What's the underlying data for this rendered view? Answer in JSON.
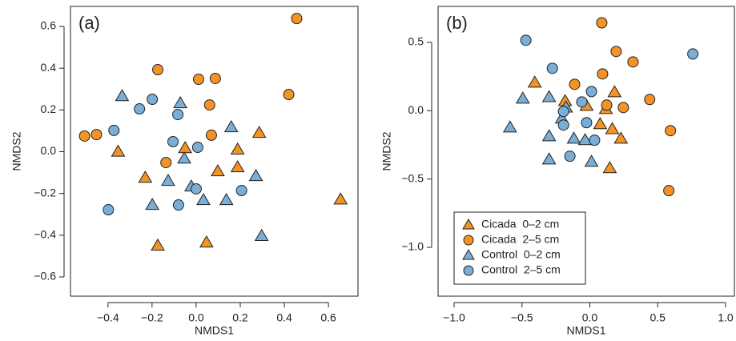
{
  "chart_data": [
    {
      "type": "scatter",
      "panel_label": "(a)",
      "xlabel": "NMDS1",
      "ylabel": "NMDS2",
      "xlim": [
        -0.57,
        0.734
      ],
      "ylim": [
        -0.692,
        0.696
      ],
      "xticks": [
        {
          "value": -0.4,
          "label": "−0.4"
        },
        {
          "value": -0.2,
          "label": "−0.2"
        },
        {
          "value": 0,
          "label": "0.0"
        },
        0.2,
        0.4,
        0.6
      ],
      "yticks": [
        {
          "value": -0.6,
          "label": "−0.6"
        },
        {
          "value": -0.4,
          "label": "−0.4"
        },
        {
          "value": -0.2,
          "label": "−0.2"
        },
        {
          "value": 0,
          "label": "0.0"
        },
        0.2,
        0.4,
        0.6
      ],
      "series": [
        {
          "marker": "triangle",
          "color": "#f39325",
          "x": [
            -0.354,
            -0.231,
            -0.174,
            -0.05,
            0.047,
            0.098,
            0.188,
            0.188,
            0.286,
            0.655
          ],
          "y": [
            0.0,
            -0.125,
            -0.45,
            0.017,
            -0.435,
            -0.094,
            0.01,
            -0.075,
            0.09,
            -0.229
          ]
        },
        {
          "marker": "circle",
          "color": "#f39325",
          "x": [
            -0.506,
            -0.452,
            -0.174,
            -0.137,
            0.011,
            0.087,
            0.061,
            0.069,
            0.42,
            0.456
          ],
          "y": [
            0.075,
            0.082,
            0.393,
            -0.052,
            0.347,
            0.351,
            0.224,
            0.079,
            0.274,
            0.638
          ]
        },
        {
          "marker": "triangle",
          "color": "#7aaed6",
          "x": [
            -0.336,
            -0.072,
            -0.199,
            -0.127,
            -0.054,
            -0.022,
            0.033,
            0.137,
            0.159,
            0.271,
            0.297
          ],
          "y": [
            0.266,
            0.232,
            -0.255,
            -0.14,
            -0.033,
            -0.167,
            -0.232,
            -0.232,
            0.117,
            -0.117,
            -0.404
          ]
        },
        {
          "marker": "circle",
          "color": "#7aaed6",
          "x": [
            -0.373,
            -0.257,
            -0.199,
            -0.083,
            -0.105,
            0.007,
            0.0,
            -0.08,
            0.206,
            -0.398
          ],
          "y": [
            0.102,
            0.205,
            0.251,
            0.178,
            0.048,
            0.021,
            -0.178,
            -0.255,
            -0.186,
            -0.278
          ]
        }
      ]
    },
    {
      "type": "scatter",
      "panel_label": "(b)",
      "xlabel": "NMDS1",
      "ylabel": "NMDS2",
      "xlim": [
        -1.118,
        1.065
      ],
      "ylim": [
        -1.357,
        0.763
      ],
      "xticks": [
        {
          "value": -1,
          "label": "−1.0"
        },
        {
          "value": -0.5,
          "label": "−0.5"
        },
        {
          "value": 0,
          "label": "0.0"
        },
        0.5,
        {
          "value": 1,
          "label": "1.0"
        }
      ],
      "yticks": [
        {
          "value": -1,
          "label": "−1.0"
        },
        {
          "value": -0.5,
          "label": "−0.5"
        },
        {
          "value": 0,
          "label": "0.0"
        },
        0.5
      ],
      "legend": "bottom-left",
      "series": [
        {
          "name": "Cicada  0–2 cm",
          "marker": "triangle",
          "color": "#f39325",
          "x": [
            -0.406,
            -0.182,
            -0.024,
            0.076,
            0.118,
            0.182,
            0.165,
            0.229,
            0.147
          ],
          "y": [
            0.205,
            0.07,
            0.035,
            -0.099,
            0.012,
            0.135,
            -0.135,
            -0.205,
            -0.421
          ]
        },
        {
          "name": "Cicada  2–5 cm",
          "marker": "circle",
          "color": "#f39325",
          "x": [
            0.088,
            -0.112,
            0.094,
            0.194,
            0.318,
            0.124,
            0.247,
            0.441,
            0.594,
            0.582
          ],
          "y": [
            0.643,
            0.193,
            0.269,
            0.433,
            0.357,
            0.041,
            0.023,
            0.082,
            -0.146,
            -0.585
          ]
        },
        {
          "name": "Control  0–2 cm",
          "marker": "triangle",
          "color": "#7aaed6",
          "x": [
            -0.494,
            -0.588,
            -0.3,
            -0.3,
            -0.3,
            -0.206,
            -0.176,
            -0.118,
            -0.035,
            0.012
          ],
          "y": [
            0.088,
            -0.123,
            0.099,
            -0.187,
            -0.357,
            -0.058,
            0.023,
            -0.205,
            -0.216,
            -0.374
          ]
        },
        {
          "name": "Control  2–5 cm",
          "marker": "circle",
          "color": "#7aaed6",
          "x": [
            -0.471,
            -0.276,
            -0.194,
            -0.194,
            -0.147,
            -0.059,
            0.012,
            -0.024,
            0.035,
            0.759
          ],
          "y": [
            0.515,
            0.31,
            -0.006,
            -0.105,
            -0.333,
            0.064,
            0.14,
            -0.088,
            -0.216,
            0.415
          ]
        }
      ]
    }
  ]
}
